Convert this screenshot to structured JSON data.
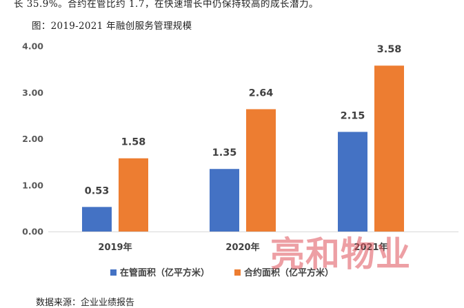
{
  "document": {
    "top_text": "长 35.9%。合约在管比约 1.7，在快速增长中仍保持较高的成长潜力。",
    "caption": "图：2019-2021 年融创服务管理规模",
    "source": "数据来源：企业业绩报告"
  },
  "watermark": "亮和物业",
  "colors": {
    "series_managed": "#4472C4",
    "series_contracted": "#ED7D31",
    "axis": "#D9D9D9",
    "text": "#404040"
  },
  "chart_data": {
    "type": "bar",
    "title": "2019-2021 年融创服务管理规模",
    "xlabel": "",
    "ylabel": "",
    "categories": [
      "2019年",
      "2020年",
      "2021年"
    ],
    "series": [
      {
        "name": "在管面积（亿平方米）",
        "values": [
          0.53,
          1.35,
          2.15
        ],
        "labels": [
          "0.53",
          "1.35",
          "2.15"
        ]
      },
      {
        "name": "合约面积（亿平方米）",
        "values": [
          1.58,
          2.64,
          3.58
        ],
        "labels": [
          "1.58",
          "2.64",
          "3.58"
        ]
      }
    ],
    "ylim": [
      0,
      4
    ],
    "yticks": [
      0,
      1,
      2,
      3,
      4
    ],
    "ytick_labels": [
      "0.00",
      "1.00",
      "2.00",
      "3.00",
      "4.00"
    ],
    "grid": false,
    "legend_position": "bottom"
  }
}
